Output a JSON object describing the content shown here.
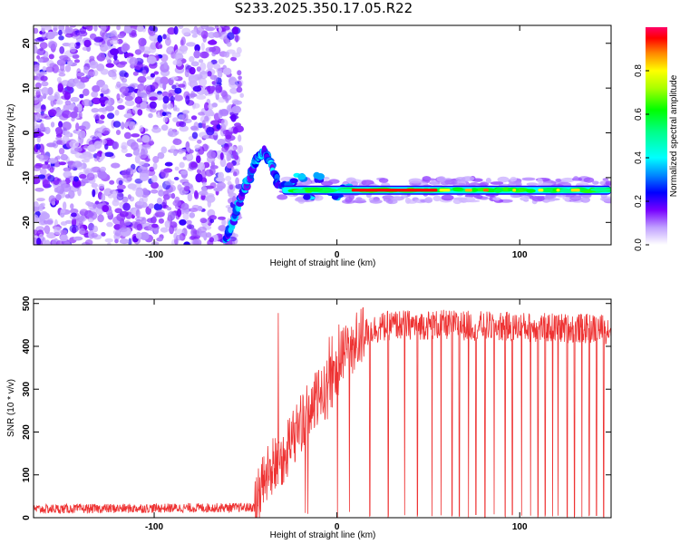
{
  "title": "S233.2025.350.17.05.R22",
  "chart_data": [
    {
      "type": "heatmap",
      "xlabel": "Height of straight line (km)",
      "ylabel": "Frequency (Hz)",
      "xlim": [
        -166,
        150
      ],
      "ylim": [
        -25,
        24
      ],
      "xticks": [
        -100,
        0,
        100
      ],
      "yticks": [
        20,
        10,
        0,
        -10,
        -20
      ],
      "colorbar": {
        "label": "Normalized spectral amplitude",
        "ticks": [
          0.0,
          0.2,
          0.4,
          0.6,
          0.8
        ],
        "range": [
          0,
          1
        ]
      },
      "features": {
        "noise_x_range": [
          -166,
          -53
        ],
        "ridge_path": [
          [
            -61,
            -24
          ],
          [
            -57,
            -20
          ],
          [
            -52,
            -14
          ],
          [
            -48,
            -10
          ],
          [
            -44,
            -6
          ],
          [
            -40,
            -4
          ],
          [
            -36,
            -7
          ],
          [
            -32,
            -12
          ]
        ],
        "tone_frequency": -12.8,
        "tone_x_range": [
          -30,
          150
        ]
      }
    },
    {
      "type": "line",
      "xlabel": "Height of straight line (km)",
      "ylabel": "SNR (10 * v/v)",
      "xlim": [
        -166,
        150
      ],
      "ylim": [
        0,
        510
      ],
      "xticks": [
        -100,
        0,
        100
      ],
      "yticks": [
        0,
        100,
        200,
        300,
        400,
        500
      ],
      "color": "#ee3333",
      "profile": [
        [
          -166,
          20
        ],
        [
          -45,
          24
        ],
        [
          -40,
          90
        ],
        [
          -35,
          120
        ],
        [
          -30,
          140
        ],
        [
          -25,
          180
        ],
        [
          -20,
          220
        ],
        [
          -15,
          250
        ],
        [
          -10,
          280
        ],
        [
          -5,
          300
        ],
        [
          0,
          350
        ],
        [
          5,
          390
        ],
        [
          10,
          410
        ],
        [
          15,
          430
        ],
        [
          20,
          440
        ],
        [
          30,
          450
        ],
        [
          60,
          450
        ],
        [
          100,
          445
        ],
        [
          150,
          440
        ]
      ],
      "dropouts_x": [
        18,
        28,
        37,
        44,
        52,
        57,
        63,
        67,
        72,
        76,
        81,
        86,
        92,
        96,
        101,
        106,
        110,
        114,
        118,
        121,
        126,
        130,
        134,
        138,
        142,
        146
      ]
    }
  ]
}
